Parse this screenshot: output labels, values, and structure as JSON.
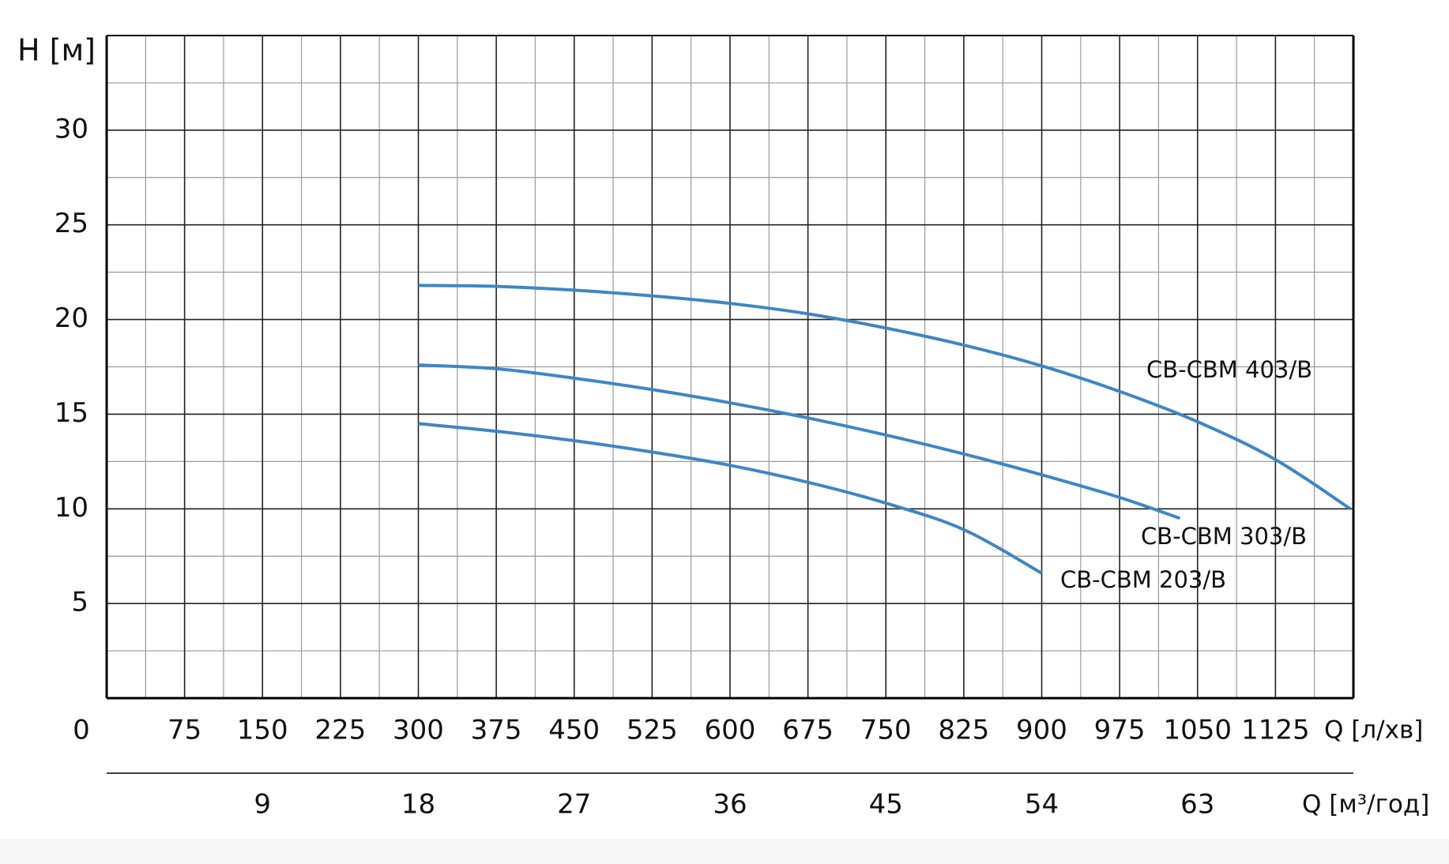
{
  "chart_data": {
    "type": "line",
    "y_label": "H [м]",
    "x_label": "Q [л/хв]",
    "x2_label": "Q [м³/год]",
    "xlim": [
      0,
      1200
    ],
    "xticks": [
      0,
      75,
      150,
      225,
      300,
      375,
      450,
      525,
      600,
      675,
      750,
      825,
      900,
      975,
      1050,
      1125
    ],
    "x2lim": [
      0,
      72
    ],
    "x2ticks": [
      9,
      18,
      27,
      36,
      45,
      54,
      63
    ],
    "ylim": [
      0,
      35
    ],
    "yticks": [
      5,
      10,
      15,
      20,
      25,
      30
    ],
    "grid": true,
    "minor_grid": true,
    "series": [
      {
        "name": "СВ-СВМ 403/В",
        "color": "#3f86c4",
        "x": [
          300,
          375,
          450,
          525,
          600,
          675,
          750,
          825,
          900,
          975,
          1050,
          1125,
          1197
        ],
        "values": [
          21.8,
          21.75,
          21.55,
          21.25,
          20.85,
          20.3,
          19.55,
          18.65,
          17.55,
          16.2,
          14.6,
          12.6,
          10.0
        ]
      },
      {
        "name": "СВ-СВМ 303/В",
        "color": "#3f86c4",
        "x": [
          300,
          375,
          450,
          525,
          600,
          675,
          750,
          825,
          900,
          975,
          1033
        ],
        "values": [
          17.6,
          17.4,
          16.9,
          16.3,
          15.6,
          14.8,
          13.9,
          12.9,
          11.8,
          10.6,
          9.5
        ]
      },
      {
        "name": "СВ-СВМ 203/В",
        "color": "#3f86c4",
        "x": [
          300,
          375,
          450,
          525,
          600,
          675,
          750,
          825,
          900
        ],
        "values": [
          14.5,
          14.1,
          13.6,
          13.0,
          12.3,
          11.4,
          10.3,
          8.9,
          6.6
        ]
      }
    ]
  }
}
